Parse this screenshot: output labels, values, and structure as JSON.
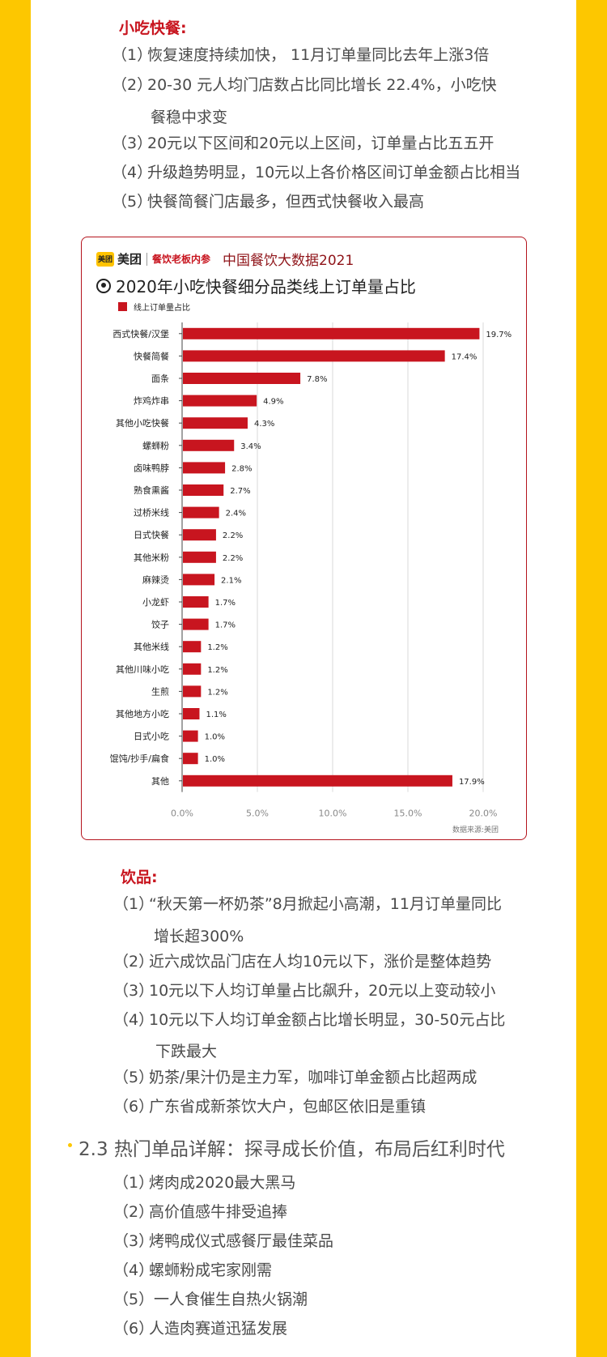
{
  "snack": {
    "heading": "小吃快餐:",
    "items": [
      {
        "num": "（1）",
        "text": "恢复速度持续加快， 11月订单量同比去年上涨3倍"
      },
      {
        "num": "（2）",
        "text": "20-30 元人均门店数占比同比增长 22.4%，小吃快",
        "cont": "餐稳中求变"
      },
      {
        "num": "（3）",
        "text": "20元以下区间和20元以上区间，订单量占比五五开"
      },
      {
        "num": "（4）",
        "text": "升级趋势明显，10元以上各价格区间订单金额占比相当"
      },
      {
        "num": "（5）",
        "text": "快餐简餐门店最多，但西式快餐收入最高"
      }
    ]
  },
  "card": {
    "logo_box": "美团",
    "logo_name": "美团",
    "logo_sub": "餐饮老板内参",
    "brand": "中国餐饮大数据2021",
    "source": "数据来源:美团"
  },
  "chart_data": {
    "type": "bar",
    "orientation": "horizontal",
    "title": "2020年小吃快餐细分品类线上订单量占比",
    "legend": "top-left",
    "grid": true,
    "categories": [
      "西式快餐/汉堡",
      "快餐简餐",
      "面条",
      "炸鸡炸串",
      "其他小吃快餐",
      "螺蛳粉",
      "卤味鸭脖",
      "熟食熏酱",
      "过桥米线",
      "日式快餐",
      "其他米粉",
      "麻辣烫",
      "小龙虾",
      "饺子",
      "其他米线",
      "其他川味小吃",
      "生煎",
      "其他地方小吃",
      "日式小吃",
      "馄饨/抄手/扁食",
      "其他"
    ],
    "series": [
      {
        "name": "线上订单量占比",
        "values": [
          19.7,
          17.4,
          7.8,
          4.9,
          4.3,
          3.4,
          2.8,
          2.7,
          2.4,
          2.2,
          2.2,
          2.1,
          1.7,
          1.7,
          1.2,
          1.2,
          1.2,
          1.1,
          1.0,
          1.0,
          17.9
        ]
      }
    ],
    "data_labels": [
      "19.7%",
      "17.4%",
      "7.8%",
      "4.9%",
      "4.3%",
      "3.4%",
      "2.8%",
      "2.7%",
      "2.4%",
      "2.2%",
      "2.2%",
      "2.1%",
      "1.7%",
      "1.7%",
      "1.2%",
      "1.2%",
      "1.2%",
      "1.1%",
      "1.0%",
      "1.0%",
      "17.9%"
    ],
    "xlim": [
      0,
      20
    ],
    "xticks": [
      "0.0%",
      "5.0%",
      "10.0%",
      "15.0%",
      "20.0%"
    ],
    "color": "#c8151f"
  },
  "drinks": {
    "heading": "饮品:",
    "items": [
      {
        "num": "（1）",
        "text": "“秋天第一杯奶茶”8月掀起小高潮，11月订单量同比",
        "cont": "增长超300%"
      },
      {
        "num": "（2）",
        "text": "近六成饮品门店在人均10元以下，涨价是整体趋势"
      },
      {
        "num": "（3）",
        "text": "10元以下人均订单量占比飙升，20元以上变动较小"
      },
      {
        "num": "（4）",
        "text": "10元以下人均订单金额占比增长明显，30-50元占比",
        "cont": "下跌最大"
      },
      {
        "num": "（5）",
        "text": "奶茶/果汁仍是主力军，咖啡订单金额占比超两成"
      },
      {
        "num": "（6）",
        "text": "广东省成新茶饮大户，包邮区依旧是重镇"
      }
    ]
  },
  "section": {
    "title": "2.3 热门单品详解：探寻成长价值，布局后红利时代",
    "items": [
      {
        "num": "（1）",
        "text": "烤肉成2020最大黑马"
      },
      {
        "num": "（2）",
        "text": "高价值感牛排受追捧"
      },
      {
        "num": "（3）",
        "text": "烤鸭成仪式感餐厅最佳菜品"
      },
      {
        "num": "（4）",
        "text": "螺蛳粉成宅家刚需"
      },
      {
        "num": "（5）",
        "text": " 一人食催生自热火锅潮"
      },
      {
        "num": "（6）",
        "text": "人造肉赛道迅猛发展"
      }
    ]
  }
}
